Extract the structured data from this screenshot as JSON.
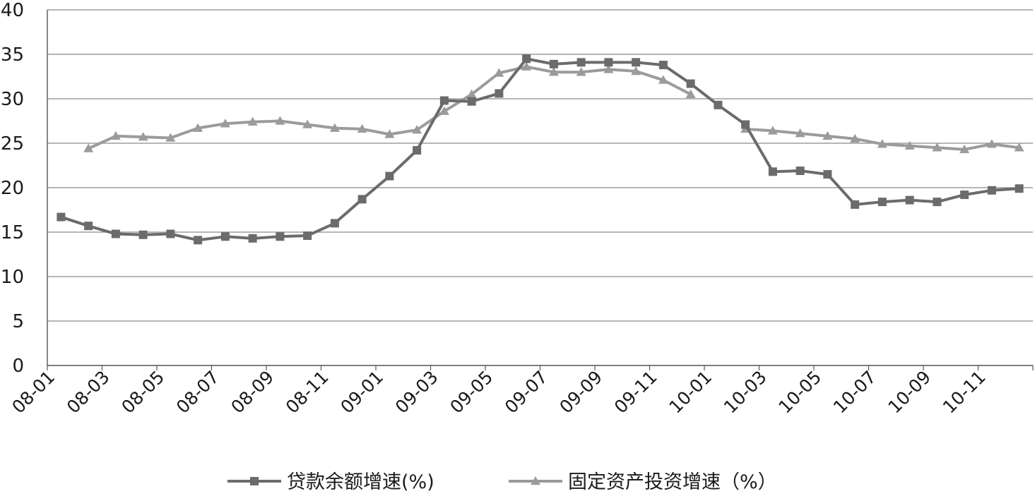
{
  "chart_data": {
    "type": "line",
    "title": "",
    "xlabel": "",
    "ylabel": "",
    "ylim": [
      0,
      40
    ],
    "y_ticks": [
      "0",
      "5",
      "10",
      "15",
      "20",
      "25",
      "30",
      "35",
      "40"
    ],
    "grid": true,
    "legend_position": "bottom",
    "categories": [
      "08-01",
      "08-02",
      "08-03",
      "08-04",
      "08-05",
      "08-06",
      "08-07",
      "08-08",
      "08-09",
      "08-10",
      "08-11",
      "08-12",
      "09-01",
      "09-02",
      "09-03",
      "09-04",
      "09-05",
      "09-06",
      "09-07",
      "09-08",
      "09-09",
      "09-10",
      "09-11",
      "09-12",
      "10-01",
      "10-02",
      "10-03",
      "10-04",
      "10-05",
      "10-06",
      "10-07",
      "10-08",
      "10-09",
      "10-10",
      "10-11",
      "10-12"
    ],
    "x_tick_labels": [
      "08-01",
      "08-03",
      "08-05",
      "08-07",
      "08-09",
      "08-11",
      "09-01",
      "09-03",
      "09-05",
      "09-07",
      "09-09",
      "09-11",
      "10-01",
      "10-03",
      "10-05",
      "10-07",
      "10-09",
      "10-11"
    ],
    "series": [
      {
        "name": "贷款余额增速(%)",
        "marker": "square",
        "color": "#6b6b6b",
        "values": [
          16.7,
          15.7,
          14.8,
          14.7,
          14.8,
          14.1,
          14.5,
          14.3,
          14.5,
          14.6,
          16.0,
          18.7,
          21.3,
          24.2,
          29.8,
          29.7,
          30.6,
          34.5,
          33.9,
          34.1,
          34.1,
          34.1,
          33.8,
          31.7,
          29.3,
          27.1,
          21.8,
          21.9,
          21.5,
          18.1,
          18.4,
          18.6,
          18.4,
          19.2,
          19.7,
          19.9
        ]
      },
      {
        "name": "固定资产投资增速（%）",
        "marker": "triangle",
        "color": "#9b9b9b",
        "values": [
          null,
          24.4,
          25.8,
          25.7,
          25.6,
          26.7,
          27.2,
          27.4,
          27.5,
          27.1,
          26.7,
          26.6,
          26.0,
          26.5,
          28.6,
          30.5,
          32.9,
          33.6,
          33.0,
          33.0,
          33.3,
          33.1,
          32.1,
          30.5,
          null,
          26.6,
          26.4,
          26.1,
          25.8,
          25.5,
          24.9,
          24.7,
          24.5,
          24.3,
          24.9,
          24.5
        ]
      }
    ]
  }
}
